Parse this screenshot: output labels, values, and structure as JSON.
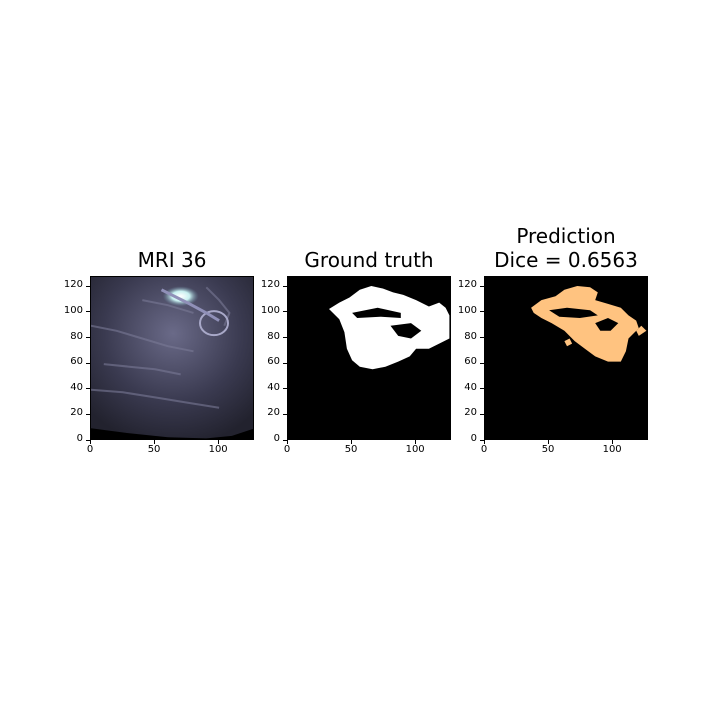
{
  "panels": [
    {
      "title_lines": [
        "MRI 36"
      ],
      "kind": "mri"
    },
    {
      "title_lines": [
        "Ground truth"
      ],
      "kind": "mask"
    },
    {
      "title_lines": [
        "Prediction",
        "Dice = 0.6563"
      ],
      "kind": "pred"
    }
  ],
  "axis": {
    "y_ticks": [
      "120",
      "100",
      "80",
      "60",
      "40",
      "20",
      "0"
    ],
    "y_values": [
      120,
      100,
      80,
      60,
      40,
      20,
      0
    ],
    "x_ticks": [
      "0",
      "50",
      "100"
    ],
    "x_values": [
      0,
      50,
      100
    ],
    "range": [
      0,
      128
    ]
  },
  "colors": {
    "mask": "#ffffff",
    "pred": "#ffc380",
    "background": "#000000",
    "mri_tint": "#4a4a66"
  }
}
